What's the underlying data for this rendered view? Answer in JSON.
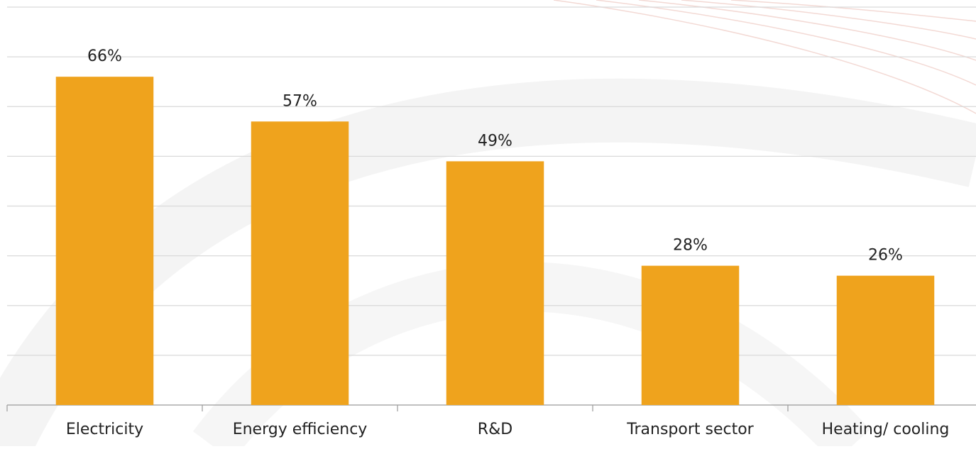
{
  "chart_data": {
    "type": "bar",
    "categories": [
      "Electricity",
      "Energy efficiency",
      "R&D",
      "Transport sector",
      "Heating/ cooling"
    ],
    "values": [
      66,
      57,
      49,
      28,
      26
    ],
    "value_labels": [
      "66%",
      "57%",
      "49%",
      "28%",
      "26%"
    ],
    "color": "#efa31d",
    "ylim": [
      0,
      80
    ],
    "yticks": [
      0,
      10,
      20,
      30,
      40,
      50,
      60,
      70,
      80
    ],
    "grid": true
  }
}
